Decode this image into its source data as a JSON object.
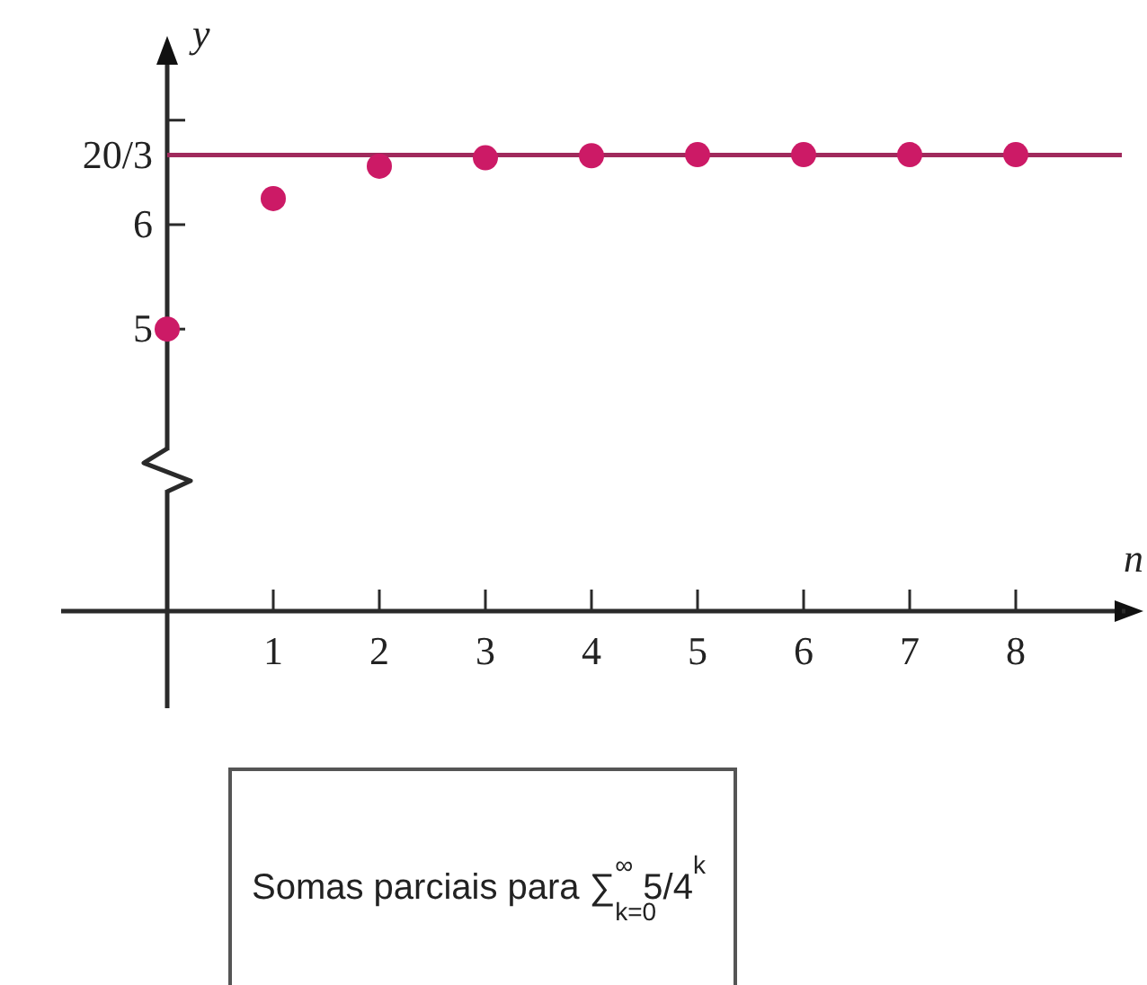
{
  "chart_data": {
    "type": "scatter",
    "xlabel": "n",
    "ylabel": "y",
    "annotations": [
      "Somas parciais para ∑$_{k=0}$$^{∞}$ 5/4$^{k}$"
    ],
    "x": [
      0,
      1,
      2,
      3,
      4,
      5,
      6,
      7,
      8
    ],
    "series": [
      {
        "color": "#cc1a66",
        "values": [
          5,
          6.25,
          6.56,
          6.64,
          6.66,
          6.67,
          6.67,
          6.67,
          6.67
        ]
      }
    ],
    "xlim": [
      -1,
      9
    ],
    "ylim": [
      2.3,
      7.6
    ],
    "xticks": [
      1,
      2,
      3,
      4,
      5,
      6,
      7,
      8
    ],
    "yticks": [
      5,
      6,
      {
        "value": 6.6667,
        "label": "20/3"
      },
      {
        "value": 7,
        "label": null
      }
    ],
    "ref_lines": [
      {
        "axis": "y",
        "value": 6.6667,
        "color": "#a02a5c"
      }
    ],
    "marker": "circle"
  }
}
